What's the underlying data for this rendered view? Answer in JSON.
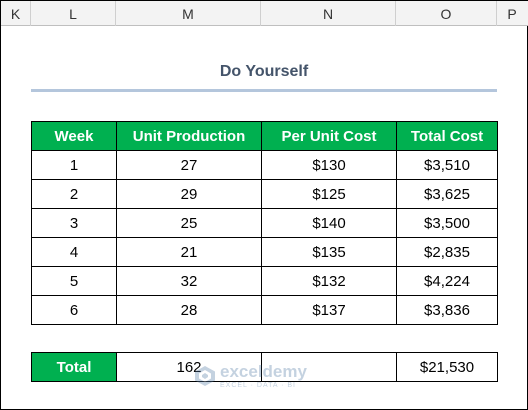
{
  "columns": [
    "K",
    "L",
    "M",
    "N",
    "O",
    "P"
  ],
  "title": "Do Yourself",
  "table": {
    "headers": [
      "Week",
      "Unit Production",
      "Per Unit Cost",
      "Total Cost"
    ],
    "rows": [
      [
        "1",
        "27",
        "$130",
        "$3,510"
      ],
      [
        "2",
        "29",
        "$125",
        "$3,625"
      ],
      [
        "3",
        "25",
        "$140",
        "$3,500"
      ],
      [
        "4",
        "21",
        "$135",
        "$2,835"
      ],
      [
        "5",
        "32",
        "$132",
        "$4,224"
      ],
      [
        "6",
        "28",
        "$137",
        "$3,836"
      ]
    ]
  },
  "total": {
    "label": "Total",
    "units": "162",
    "per_unit": "",
    "cost": "$21,530"
  },
  "watermark": {
    "name": "exceldemy",
    "tagline": "EXCEL · DATA · BI"
  },
  "colors": {
    "header_green": "#00b050",
    "title_color": "#44546a",
    "title_underline": "#b4c6dc"
  }
}
